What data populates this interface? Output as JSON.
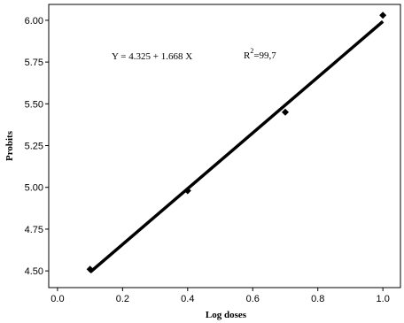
{
  "chart_data": {
    "type": "scatter",
    "xlabel": "Log doses",
    "ylabel": "Probits",
    "series": [
      {
        "color": "#000000",
        "x": [
          0.1,
          0.4,
          0.7,
          1.0
        ],
        "values": [
          4.51,
          4.98,
          5.45,
          6.03
        ]
      }
    ],
    "fit": {
      "color": "#000000",
      "x": [
        0.1,
        1.0
      ],
      "values": [
        4.492,
        5.993
      ]
    },
    "equation": "Y =  4.325 + 1.668 X",
    "r2": {
      "base": "R",
      "sup": "2",
      "rest": "=99,7"
    },
    "xlim": [
      -0.027,
      1.054
    ],
    "ylim": [
      4.4,
      6.095
    ],
    "xticks": [
      {
        "value": 0,
        "label": "0.0"
      },
      0.2,
      0.4,
      0.6,
      0.8,
      {
        "value": 1,
        "label": "1.0"
      }
    ],
    "yticks": [
      {
        "value": 4.5,
        "label": "4.50"
      },
      {
        "value": 4.75,
        "label": "4.75"
      },
      {
        "value": 5,
        "label": "5.00"
      },
      {
        "value": 5.25,
        "label": "5.25"
      },
      {
        "value": 5.5,
        "label": "5.50"
      },
      {
        "value": 5.75,
        "label": "5.75"
      },
      {
        "value": 6,
        "label": "6.00"
      }
    ]
  }
}
